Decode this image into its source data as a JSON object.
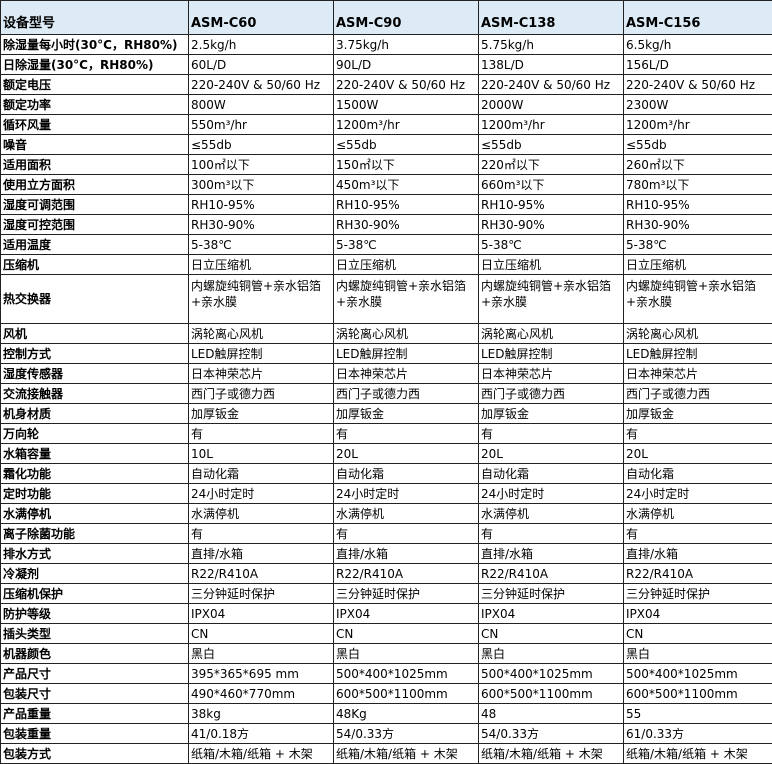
{
  "header": [
    "设备型号",
    "ASM-C60",
    "ASM-C90",
    "ASM-C138",
    "ASM-C156"
  ],
  "header_bg": "#ddebf7",
  "rows": [
    [
      "除湿量每小时(30°C，RH80%)",
      "2.5kg/h",
      "3.75kg/h",
      "5.75kg/h",
      "6.5kg/h"
    ],
    [
      "日除湿量(30°C，RH80%)",
      "60L/D",
      "90L/D",
      "138L/D",
      "156L/D"
    ],
    [
      "额定电压",
      "220-240V & 50/60 Hz",
      "220-240V & 50/60 Hz",
      "220-240V & 50/60 Hz",
      "220-240V & 50/60 Hz"
    ],
    [
      "额定功率",
      "800W",
      "1500W",
      "2000W",
      "2300W"
    ],
    [
      "循环风量",
      "550m³/hr",
      "1200m³/hr",
      "1200m³/hr",
      "1200m³/hr"
    ],
    [
      "噪音",
      "≤55db",
      "≤55db",
      "≤55db",
      "≤55db"
    ],
    [
      "适用面积",
      "100㎡以下",
      "150㎡以下",
      "220㎡以下",
      "260㎡以下"
    ],
    [
      "使用立方面积",
      "300m³以下",
      "450m³以下",
      "660m³以下",
      "780m³以下"
    ],
    [
      "湿度可调范围",
      "RH10-95%",
      "RH10-95%",
      "RH10-95%",
      "RH10-95%"
    ],
    [
      "湿度可控范围",
      "RH30-90%",
      "RH30-90%",
      "RH30-90%",
      "RH30-90%"
    ],
    [
      "适用温度",
      "5-38℃",
      "5-38℃",
      "5-38℃",
      "5-38℃"
    ],
    [
      "压缩机",
      "日立压缩机",
      "日立压缩机",
      "日立压缩机",
      "日立压缩机"
    ],
    [
      "热交换器",
      "内螺旋纯铜管+亲水铝箔+亲水膜",
      "内螺旋纯铜管+亲水铝箔+亲水膜",
      "内螺旋纯铜管+亲水铝箔+亲水膜",
      "内螺旋纯铜管+亲水铝箔+亲水膜"
    ],
    [
      "风机",
      "涡轮离心风机",
      "涡轮离心风机",
      "涡轮离心风机",
      "涡轮离心风机"
    ],
    [
      "控制方式",
      "LED触屏控制",
      "LED触屏控制",
      "LED触屏控制",
      "LED触屏控制"
    ],
    [
      "湿度传感器",
      "日本神荣芯片",
      "日本神荣芯片",
      "日本神荣芯片",
      "日本神荣芯片"
    ],
    [
      "交流接触器",
      "西门子或德力西",
      "西门子或德力西",
      "西门子或德力西",
      "西门子或德力西"
    ],
    [
      "机身材质",
      "加厚钣金",
      "加厚钣金",
      "加厚钣金",
      "加厚钣金"
    ],
    [
      "万向轮",
      "有",
      "有",
      "有",
      "有"
    ],
    [
      "水箱容量",
      "10L",
      "20L",
      "20L",
      "20L"
    ],
    [
      "霜化功能",
      "自动化霜",
      "自动化霜",
      "自动化霜",
      "自动化霜"
    ],
    [
      "定时功能",
      "24小时定时",
      "24小时定时",
      "24小时定时",
      "24小时定时"
    ],
    [
      "水满停机",
      "水满停机",
      "水满停机",
      "水满停机",
      "水满停机"
    ],
    [
      "离子除菌功能",
      "有",
      "有",
      "有",
      "有"
    ],
    [
      "排水方式",
      "直排/水箱",
      "直排/水箱",
      "直排/水箱",
      "直排/水箱"
    ],
    [
      "冷凝剂",
      "R22/R410A",
      "R22/R410A",
      "R22/R410A",
      "R22/R410A"
    ],
    [
      "压缩机保护",
      "三分钟延时保护",
      "三分钟延时保护",
      "三分钟延时保护",
      "三分钟延时保护"
    ],
    [
      "防护等级",
      "IPX04",
      "IPX04",
      "IPX04",
      "IPX04"
    ],
    [
      "插头类型",
      "CN",
      "CN",
      "CN",
      "CN"
    ],
    [
      "机器颜色",
      "黑白",
      "黑白",
      "黑白",
      "黑白"
    ],
    [
      "产品尺寸",
      "395*365*695 mm",
      "500*400*1025mm",
      "500*400*1025mm",
      "500*400*1025mm"
    ],
    [
      "包装尺寸",
      "490*460*770mm",
      "600*500*1100mm",
      "600*500*1100mm",
      "600*500*1100mm"
    ],
    [
      "产品重量",
      "38kg",
      "48Kg",
      "48",
      "55"
    ],
    [
      "包装重量",
      "41/0.18方",
      "54/0.33方",
      "54/0.33方",
      "61/0.33方"
    ],
    [
      "包装方式",
      "纸箱/木箱/纸箱 + 木架",
      "纸箱/木箱/纸箱 + 木架",
      "纸箱/木箱/纸箱 + 木架",
      "纸箱/木箱/纸箱 + 木架"
    ]
  ]
}
